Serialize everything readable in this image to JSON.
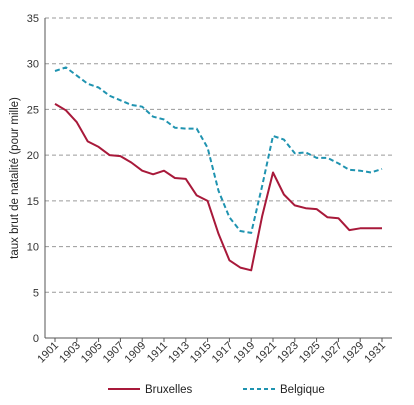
{
  "chart_data": {
    "type": "line",
    "ylabel": "taux brut de natalité (pour mille)",
    "xlabel": "",
    "ylim": [
      0,
      35
    ],
    "y_ticks": [
      0,
      5,
      10,
      15,
      20,
      25,
      30,
      35
    ],
    "x_range": [
      1901,
      1931
    ],
    "x_tick_labels": [
      "1901",
      "1903",
      "1905",
      "1907",
      "1909",
      "1911",
      "1913",
      "1915",
      "1917",
      "1919",
      "1921",
      "1923",
      "1925",
      "1927",
      "1929",
      "1931"
    ],
    "grid": "horizontal-dashed",
    "legend_position": "bottom",
    "x": [
      1901,
      1902,
      1903,
      1904,
      1905,
      1906,
      1907,
      1908,
      1909,
      1910,
      1911,
      1912,
      1913,
      1914,
      1915,
      1916,
      1917,
      1918,
      1919,
      1920,
      1921,
      1922,
      1923,
      1924,
      1925,
      1926,
      1927,
      1928,
      1929,
      1930,
      1931
    ],
    "series": [
      {
        "name": "Bruxelles",
        "color": "#a8193a",
        "style": "solid",
        "values": [
          25.6,
          24.9,
          23.6,
          21.5,
          20.9,
          20.0,
          19.9,
          19.2,
          18.3,
          17.9,
          18.3,
          17.5,
          17.4,
          15.6,
          15.0,
          11.4,
          8.5,
          7.7,
          7.4,
          13.3,
          18.1,
          15.7,
          14.5,
          14.2,
          14.1,
          13.2,
          13.1,
          11.8,
          12.0,
          12.0,
          12.0
        ]
      },
      {
        "name": "Belgique",
        "color": "#1f93b0",
        "style": "dashed",
        "values": [
          29.2,
          29.6,
          28.7,
          27.8,
          27.4,
          26.5,
          26.0,
          25.5,
          25.3,
          24.2,
          23.9,
          23.0,
          22.9,
          22.9,
          20.8,
          16.1,
          13.2,
          11.7,
          11.5,
          16.6,
          22.1,
          21.7,
          20.2,
          20.3,
          19.7,
          19.7,
          19.1,
          18.4,
          18.3,
          18.1,
          18.5
        ]
      }
    ]
  }
}
